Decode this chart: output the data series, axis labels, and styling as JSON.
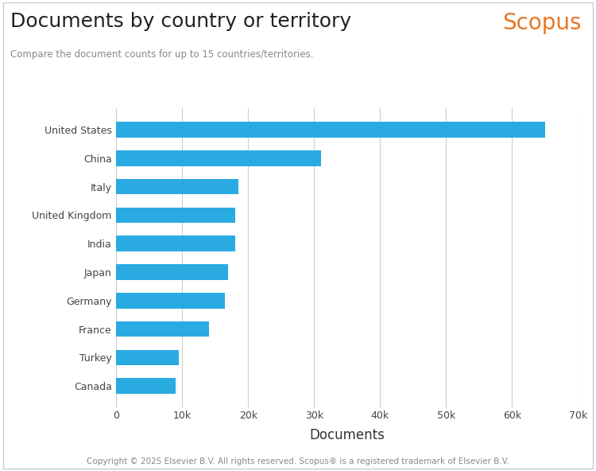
{
  "title": "Documents by country or territory",
  "subtitle": "Compare the document counts for up to 15 countries/territories.",
  "scopus_label": "Scopus",
  "scopus_color": "#E87722",
  "xlabel": "Documents",
  "footer": "Copyright © 2025 Elsevier B.V. All rights reserved. Scopus® is a registered trademark of Elsevier B.V.",
  "categories": [
    "Canada",
    "Turkey",
    "France",
    "Germany",
    "Japan",
    "India",
    "United Kingdom",
    "Italy",
    "China",
    "United States"
  ],
  "values": [
    9000,
    9500,
    14000,
    16500,
    17000,
    18000,
    18000,
    18500,
    31000,
    65000
  ],
  "bar_color": "#29ABE2",
  "background_color": "#FFFFFF",
  "xlim": [
    0,
    70000
  ],
  "xticks": [
    0,
    10000,
    20000,
    30000,
    40000,
    50000,
    60000,
    70000
  ],
  "xtick_labels": [
    "0",
    "10k",
    "20k",
    "30k",
    "40k",
    "50k",
    "60k",
    "70k"
  ],
  "grid_color": "#CCCCCC",
  "title_fontsize": 18,
  "subtitle_fontsize": 8.5,
  "axis_label_fontsize": 12,
  "tick_fontsize": 9,
  "footer_fontsize": 7.5,
  "scopus_fontsize": 20,
  "bar_height": 0.55
}
